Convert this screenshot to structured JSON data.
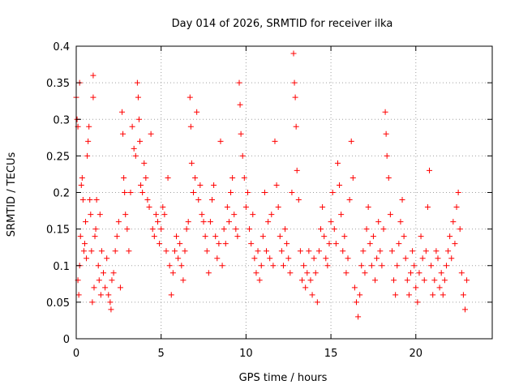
{
  "chart_data": {
    "type": "scatter",
    "title": "Day 014 of 2026, SRMTID for receiver ilka",
    "xlabel": "GPS time / hours",
    "ylabel": "SRMTID / TECUs",
    "xlim": [
      0,
      24.5
    ],
    "ylim": [
      0,
      0.4
    ],
    "x_ticks": [
      0,
      5,
      10,
      15,
      20
    ],
    "x_tick_labels": [
      "0",
      "5",
      "10",
      "15",
      "20"
    ],
    "y_ticks": [
      0,
      0.05,
      0.1,
      0.15,
      0.2,
      0.25,
      0.3,
      0.35,
      0.4
    ],
    "y_tick_labels": [
      "0",
      "0.05",
      "0.1",
      "0.15",
      "0.2",
      "0.25",
      "0.3",
      "0.35",
      "0.4"
    ],
    "grid": true,
    "marker": "+",
    "color": "#ff0000",
    "series": [
      {
        "name": "SRMTID",
        "points": [
          [
            0.0,
            0.33
          ],
          [
            0.05,
            0.3
          ],
          [
            0.1,
            0.29
          ],
          [
            0.1,
            0.08
          ],
          [
            0.15,
            0.06
          ],
          [
            0.2,
            0.35
          ],
          [
            0.2,
            0.1
          ],
          [
            0.25,
            0.14
          ],
          [
            0.3,
            0.21
          ],
          [
            0.35,
            0.22
          ],
          [
            0.4,
            0.19
          ],
          [
            0.45,
            0.12
          ],
          [
            0.5,
            0.13
          ],
          [
            0.55,
            0.16
          ],
          [
            0.6,
            0.11
          ],
          [
            0.65,
            0.25
          ],
          [
            0.7,
            0.27
          ],
          [
            0.75,
            0.29
          ],
          [
            0.8,
            0.19
          ],
          [
            0.85,
            0.17
          ],
          [
            0.9,
            0.12
          ],
          [
            0.95,
            0.05
          ],
          [
            1.0,
            0.33
          ],
          [
            1.0,
            0.36
          ],
          [
            1.05,
            0.07
          ],
          [
            1.1,
            0.14
          ],
          [
            1.15,
            0.15
          ],
          [
            1.2,
            0.19
          ],
          [
            1.3,
            0.1
          ],
          [
            1.35,
            0.08
          ],
          [
            1.4,
            0.17
          ],
          [
            1.45,
            0.06
          ],
          [
            1.5,
            0.12
          ],
          [
            1.6,
            0.09
          ],
          [
            1.7,
            0.07
          ],
          [
            1.8,
            0.11
          ],
          [
            1.9,
            0.06
          ],
          [
            2.0,
            0.05
          ],
          [
            2.05,
            0.04
          ],
          [
            2.1,
            0.08
          ],
          [
            2.2,
            0.09
          ],
          [
            2.3,
            0.12
          ],
          [
            2.4,
            0.14
          ],
          [
            2.5,
            0.16
          ],
          [
            2.6,
            0.07
          ],
          [
            2.7,
            0.31
          ],
          [
            2.75,
            0.28
          ],
          [
            2.8,
            0.22
          ],
          [
            2.85,
            0.2
          ],
          [
            2.9,
            0.17
          ],
          [
            3.0,
            0.15
          ],
          [
            3.1,
            0.12
          ],
          [
            3.2,
            0.2
          ],
          [
            3.3,
            0.29
          ],
          [
            3.4,
            0.26
          ],
          [
            3.5,
            0.25
          ],
          [
            3.6,
            0.35
          ],
          [
            3.65,
            0.33
          ],
          [
            3.7,
            0.3
          ],
          [
            3.75,
            0.27
          ],
          [
            3.8,
            0.21
          ],
          [
            3.9,
            0.2
          ],
          [
            4.0,
            0.24
          ],
          [
            4.1,
            0.22
          ],
          [
            4.2,
            0.19
          ],
          [
            4.3,
            0.18
          ],
          [
            4.4,
            0.28
          ],
          [
            4.5,
            0.15
          ],
          [
            4.6,
            0.14
          ],
          [
            4.7,
            0.17
          ],
          [
            4.8,
            0.16
          ],
          [
            4.9,
            0.13
          ],
          [
            5.0,
            0.15
          ],
          [
            5.1,
            0.18
          ],
          [
            5.2,
            0.17
          ],
          [
            5.3,
            0.12
          ],
          [
            5.4,
            0.22
          ],
          [
            5.5,
            0.1
          ],
          [
            5.6,
            0.06
          ],
          [
            5.7,
            0.09
          ],
          [
            5.8,
            0.12
          ],
          [
            5.9,
            0.14
          ],
          [
            6.0,
            0.11
          ],
          [
            6.1,
            0.13
          ],
          [
            6.2,
            0.1
          ],
          [
            6.3,
            0.08
          ],
          [
            6.4,
            0.12
          ],
          [
            6.5,
            0.15
          ],
          [
            6.6,
            0.16
          ],
          [
            6.7,
            0.33
          ],
          [
            6.75,
            0.29
          ],
          [
            6.8,
            0.24
          ],
          [
            6.9,
            0.2
          ],
          [
            7.0,
            0.22
          ],
          [
            7.1,
            0.31
          ],
          [
            7.2,
            0.19
          ],
          [
            7.3,
            0.21
          ],
          [
            7.4,
            0.17
          ],
          [
            7.5,
            0.16
          ],
          [
            7.6,
            0.14
          ],
          [
            7.7,
            0.12
          ],
          [
            7.8,
            0.09
          ],
          [
            7.9,
            0.16
          ],
          [
            8.0,
            0.19
          ],
          [
            8.1,
            0.21
          ],
          [
            8.2,
            0.14
          ],
          [
            8.3,
            0.11
          ],
          [
            8.4,
            0.13
          ],
          [
            8.5,
            0.27
          ],
          [
            8.6,
            0.1
          ],
          [
            8.7,
            0.15
          ],
          [
            8.8,
            0.13
          ],
          [
            8.9,
            0.18
          ],
          [
            9.0,
            0.16
          ],
          [
            9.1,
            0.2
          ],
          [
            9.2,
            0.22
          ],
          [
            9.3,
            0.17
          ],
          [
            9.4,
            0.15
          ],
          [
            9.5,
            0.14
          ],
          [
            9.6,
            0.35
          ],
          [
            9.65,
            0.32
          ],
          [
            9.7,
            0.28
          ],
          [
            9.8,
            0.25
          ],
          [
            9.9,
            0.22
          ],
          [
            10.0,
            0.18
          ],
          [
            10.1,
            0.2
          ],
          [
            10.2,
            0.15
          ],
          [
            10.3,
            0.13
          ],
          [
            10.4,
            0.17
          ],
          [
            10.5,
            0.11
          ],
          [
            10.6,
            0.09
          ],
          [
            10.7,
            0.12
          ],
          [
            10.8,
            0.08
          ],
          [
            10.9,
            0.1
          ],
          [
            11.0,
            0.14
          ],
          [
            11.1,
            0.2
          ],
          [
            11.2,
            0.12
          ],
          [
            11.3,
            0.16
          ],
          [
            11.4,
            0.11
          ],
          [
            11.5,
            0.17
          ],
          [
            11.6,
            0.1
          ],
          [
            11.7,
            0.27
          ],
          [
            11.8,
            0.21
          ],
          [
            11.9,
            0.18
          ],
          [
            12.0,
            0.14
          ],
          [
            12.1,
            0.12
          ],
          [
            12.2,
            0.1
          ],
          [
            12.3,
            0.15
          ],
          [
            12.4,
            0.13
          ],
          [
            12.5,
            0.11
          ],
          [
            12.6,
            0.09
          ],
          [
            12.7,
            0.2
          ],
          [
            12.8,
            0.39
          ],
          [
            12.85,
            0.35
          ],
          [
            12.9,
            0.33
          ],
          [
            12.95,
            0.29
          ],
          [
            13.0,
            0.23
          ],
          [
            13.1,
            0.19
          ],
          [
            13.2,
            0.12
          ],
          [
            13.3,
            0.08
          ],
          [
            13.4,
            0.1
          ],
          [
            13.5,
            0.07
          ],
          [
            13.6,
            0.09
          ],
          [
            13.7,
            0.12
          ],
          [
            13.8,
            0.08
          ],
          [
            13.9,
            0.06
          ],
          [
            14.0,
            0.11
          ],
          [
            14.1,
            0.09
          ],
          [
            14.2,
            0.05
          ],
          [
            14.3,
            0.12
          ],
          [
            14.4,
            0.15
          ],
          [
            14.5,
            0.18
          ],
          [
            14.6,
            0.14
          ],
          [
            14.7,
            0.11
          ],
          [
            14.8,
            0.1
          ],
          [
            14.9,
            0.13
          ],
          [
            15.0,
            0.16
          ],
          [
            15.1,
            0.2
          ],
          [
            15.2,
            0.15
          ],
          [
            15.3,
            0.13
          ],
          [
            15.4,
            0.24
          ],
          [
            15.5,
            0.21
          ],
          [
            15.6,
            0.17
          ],
          [
            15.7,
            0.12
          ],
          [
            15.8,
            0.14
          ],
          [
            15.9,
            0.09
          ],
          [
            16.0,
            0.11
          ],
          [
            16.1,
            0.19
          ],
          [
            16.2,
            0.27
          ],
          [
            16.3,
            0.22
          ],
          [
            16.4,
            0.07
          ],
          [
            16.5,
            0.05
          ],
          [
            16.6,
            0.03
          ],
          [
            16.7,
            0.06
          ],
          [
            16.8,
            0.1
          ],
          [
            16.9,
            0.12
          ],
          [
            17.0,
            0.09
          ],
          [
            17.1,
            0.15
          ],
          [
            17.2,
            0.18
          ],
          [
            17.3,
            0.13
          ],
          [
            17.4,
            0.1
          ],
          [
            17.5,
            0.14
          ],
          [
            17.6,
            0.08
          ],
          [
            17.7,
            0.11
          ],
          [
            17.8,
            0.16
          ],
          [
            17.9,
            0.12
          ],
          [
            18.0,
            0.1
          ],
          [
            18.1,
            0.15
          ],
          [
            18.2,
            0.31
          ],
          [
            18.25,
            0.28
          ],
          [
            18.3,
            0.25
          ],
          [
            18.4,
            0.22
          ],
          [
            18.5,
            0.17
          ],
          [
            18.6,
            0.12
          ],
          [
            18.7,
            0.08
          ],
          [
            18.8,
            0.06
          ],
          [
            18.9,
            0.1
          ],
          [
            19.0,
            0.13
          ],
          [
            19.1,
            0.16
          ],
          [
            19.2,
            0.19
          ],
          [
            19.3,
            0.14
          ],
          [
            19.4,
            0.11
          ],
          [
            19.5,
            0.08
          ],
          [
            19.6,
            0.06
          ],
          [
            19.7,
            0.09
          ],
          [
            19.8,
            0.12
          ],
          [
            19.9,
            0.1
          ],
          [
            20.0,
            0.07
          ],
          [
            20.1,
            0.05
          ],
          [
            20.2,
            0.09
          ],
          [
            20.3,
            0.14
          ],
          [
            20.4,
            0.11
          ],
          [
            20.5,
            0.08
          ],
          [
            20.6,
            0.12
          ],
          [
            20.7,
            0.18
          ],
          [
            20.8,
            0.23
          ],
          [
            20.9,
            0.1
          ],
          [
            21.0,
            0.06
          ],
          [
            21.1,
            0.08
          ],
          [
            21.2,
            0.12
          ],
          [
            21.3,
            0.11
          ],
          [
            21.4,
            0.07
          ],
          [
            21.5,
            0.09
          ],
          [
            21.6,
            0.06
          ],
          [
            21.7,
            0.08
          ],
          [
            21.8,
            0.1
          ],
          [
            21.9,
            0.12
          ],
          [
            22.0,
            0.14
          ],
          [
            22.1,
            0.11
          ],
          [
            22.2,
            0.16
          ],
          [
            22.3,
            0.13
          ],
          [
            22.4,
            0.18
          ],
          [
            22.5,
            0.2
          ],
          [
            22.6,
            0.15
          ],
          [
            22.7,
            0.09
          ],
          [
            22.8,
            0.06
          ],
          [
            22.9,
            0.04
          ],
          [
            23.0,
            0.08
          ]
        ]
      }
    ]
  }
}
